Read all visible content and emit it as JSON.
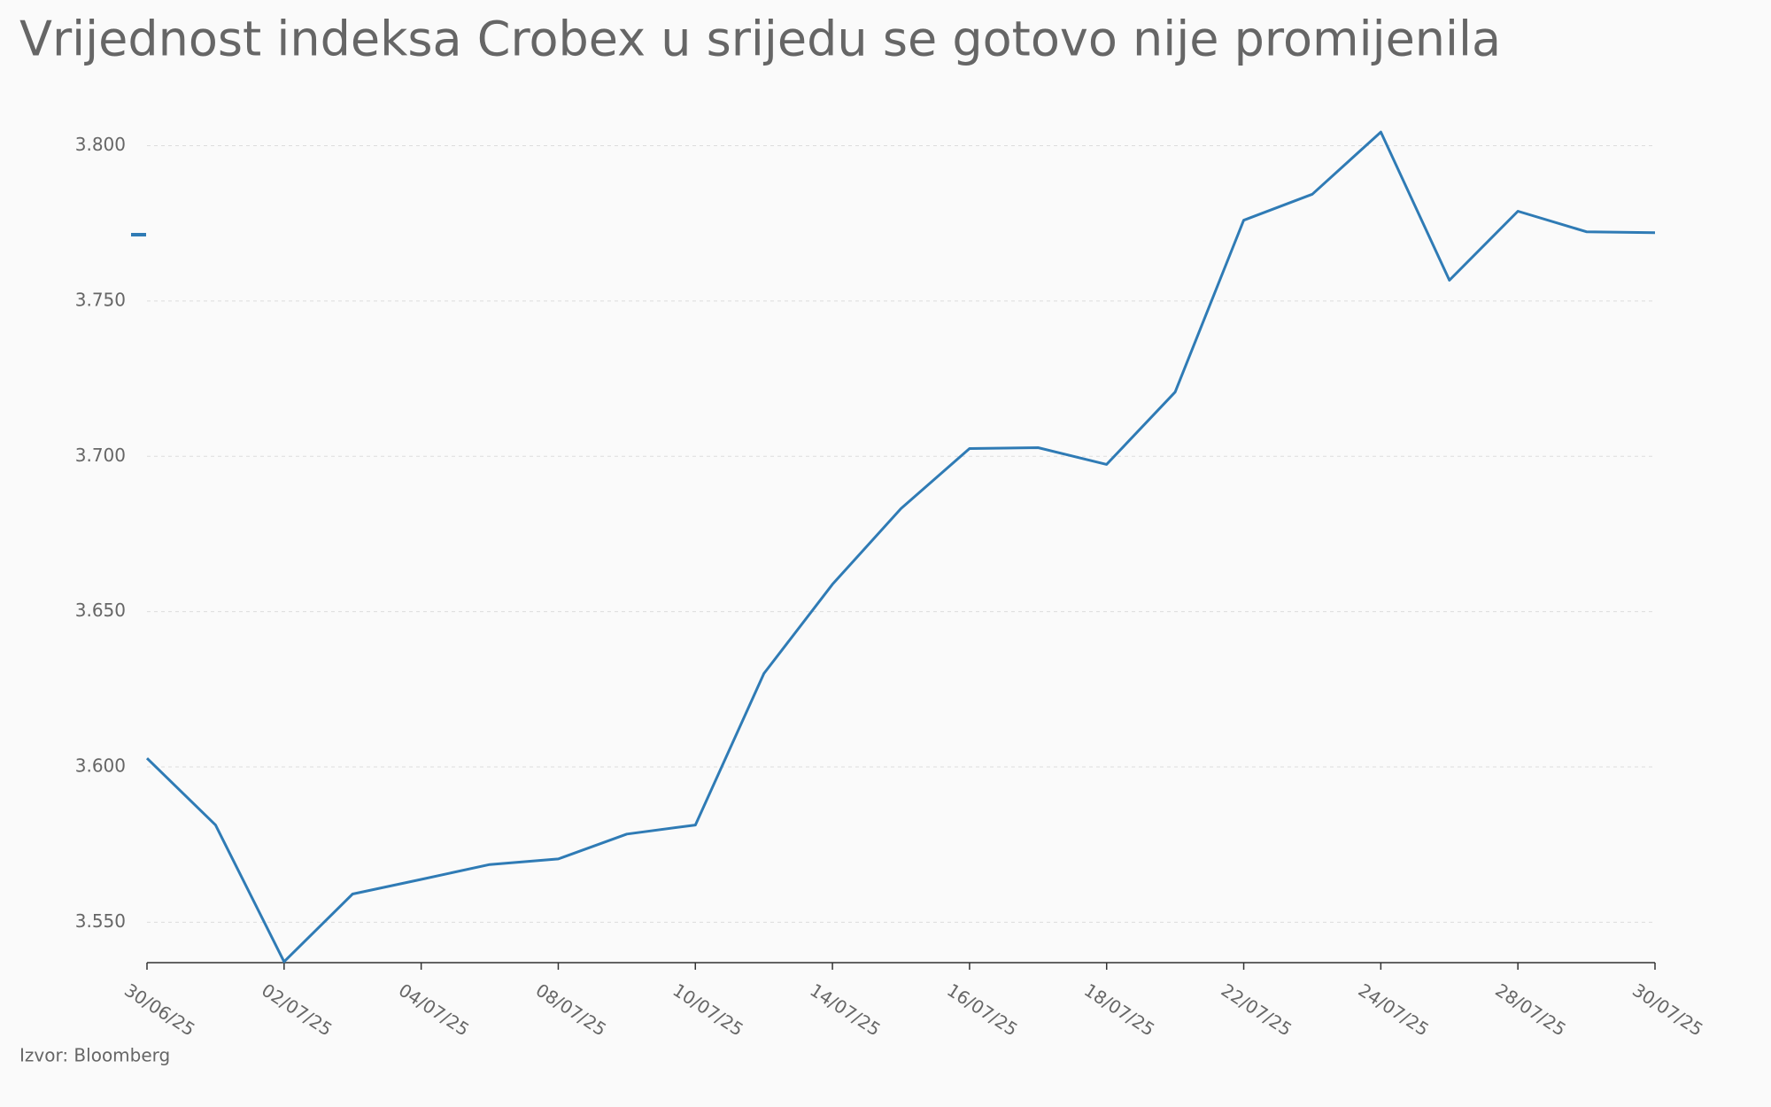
{
  "chart_data": {
    "type": "line",
    "title": "Vrijednost indeksa Crobex u srijedu se gotovo nije promijenila",
    "source": "Izvor: Bloomberg",
    "categories": [
      "30/06/25",
      null,
      "02/07/25",
      null,
      "04/07/25",
      null,
      "08/07/25",
      null,
      "10/07/25",
      null,
      "14/07/25",
      null,
      "16/07/25",
      null,
      "18/07/25",
      null,
      "22/07/25",
      null,
      "24/07/25",
      null,
      "28/07/25",
      null,
      "30/07/25"
    ],
    "values": [
      3602.8,
      3581.3,
      3537.3,
      3559.1,
      3563.8,
      3568.6,
      3570.4,
      3578.4,
      3581.3,
      3630.1,
      3658.8,
      3683.2,
      3702.5,
      3702.8,
      3697.4,
      3720.7,
      3776.0,
      3784.4,
      3804.4,
      3756.7,
      3778.9,
      3772.3,
      3772.0
    ],
    "color": "#2f7bb5",
    "ylim": [
      3537,
      3805
    ],
    "yticks": [
      {
        "value": 3550,
        "label": "3.550"
      },
      {
        "value": 3600,
        "label": "3.600"
      },
      {
        "value": 3650,
        "label": "3.650"
      },
      {
        "value": 3700,
        "label": "3.700"
      },
      {
        "value": 3750,
        "label": "3.750"
      },
      {
        "value": 3800,
        "label": "3.800"
      }
    ],
    "grid": true
  }
}
